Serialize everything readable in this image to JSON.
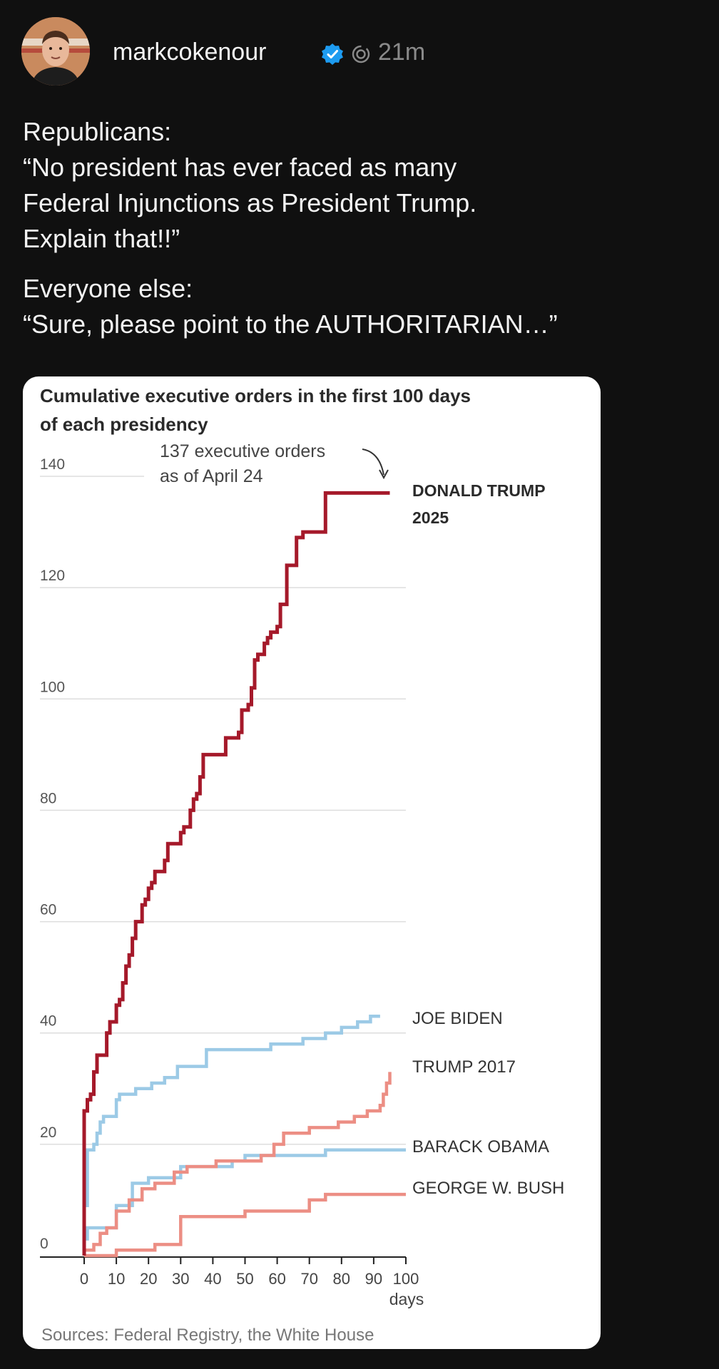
{
  "post": {
    "username": "markcokenour",
    "time": "21m",
    "icons": {
      "verified": "verified-badge-icon",
      "ai": "ai-label-icon"
    },
    "paragraph1": [
      "Republicans:",
      "“No president has ever faced as many",
      "Federal Injunctions as President Trump.",
      "Explain that!!”"
    ],
    "paragraph2": [
      "Everyone else:",
      "“Sure, please point to the AUTHORITARIAN…”"
    ]
  },
  "chart_data": {
    "type": "line",
    "title": "Cumulative executive orders in the first 100 days of each presidency",
    "title_lines": [
      "Cumulative executive orders in the first 100 days",
      "of each presidency"
    ],
    "xlabel": "days",
    "xlim": [
      0,
      100
    ],
    "ylim": [
      0,
      140
    ],
    "x_ticks": [
      0,
      10,
      20,
      30,
      40,
      50,
      60,
      70,
      80,
      90,
      100
    ],
    "y_ticks": [
      0,
      20,
      40,
      60,
      80,
      100,
      120,
      140
    ],
    "grid": true,
    "annotation": {
      "lines": [
        "137 executive orders",
        "as of April 24"
      ],
      "x": 95,
      "y": 137
    },
    "source": "Sources: Federal Registry, the White House",
    "colors": {
      "trump2025": "#a5192a",
      "democrat": "#9ccae6",
      "republican": "#ec8e84"
    },
    "series": [
      {
        "name": "DONALD TRUMP 2025",
        "label_lines": [
          "DONALD TRUMP",
          "2025"
        ],
        "color": "#a5192a",
        "bold": true,
        "points": [
          [
            0,
            0
          ],
          [
            0,
            26
          ],
          [
            1,
            26
          ],
          [
            1,
            28
          ],
          [
            2,
            28
          ],
          [
            2,
            29
          ],
          [
            3,
            29
          ],
          [
            3,
            33
          ],
          [
            4,
            33
          ],
          [
            4,
            36
          ],
          [
            5,
            36
          ],
          [
            5,
            36
          ],
          [
            7,
            36
          ],
          [
            7,
            40
          ],
          [
            8,
            40
          ],
          [
            8,
            42
          ],
          [
            10,
            42
          ],
          [
            10,
            45
          ],
          [
            11,
            45
          ],
          [
            11,
            46
          ],
          [
            12,
            46
          ],
          [
            12,
            49
          ],
          [
            13,
            49
          ],
          [
            13,
            52
          ],
          [
            14,
            52
          ],
          [
            14,
            54
          ],
          [
            15,
            54
          ],
          [
            15,
            57
          ],
          [
            16,
            57
          ],
          [
            16,
            60
          ],
          [
            18,
            60
          ],
          [
            18,
            63
          ],
          [
            19,
            63
          ],
          [
            19,
            64
          ],
          [
            20,
            64
          ],
          [
            20,
            66
          ],
          [
            21,
            66
          ],
          [
            21,
            67
          ],
          [
            22,
            67
          ],
          [
            22,
            69
          ],
          [
            25,
            69
          ],
          [
            25,
            71
          ],
          [
            26,
            71
          ],
          [
            26,
            74
          ],
          [
            30,
            74
          ],
          [
            30,
            76
          ],
          [
            31,
            76
          ],
          [
            31,
            77
          ],
          [
            33,
            77
          ],
          [
            33,
            80
          ],
          [
            34,
            80
          ],
          [
            34,
            82
          ],
          [
            35,
            82
          ],
          [
            35,
            83
          ],
          [
            36,
            83
          ],
          [
            36,
            86
          ],
          [
            37,
            86
          ],
          [
            37,
            90
          ],
          [
            44,
            90
          ],
          [
            44,
            93
          ],
          [
            48,
            93
          ],
          [
            48,
            94
          ],
          [
            49,
            94
          ],
          [
            49,
            98
          ],
          [
            51,
            98
          ],
          [
            51,
            99
          ],
          [
            52,
            99
          ],
          [
            52,
            102
          ],
          [
            53,
            102
          ],
          [
            53,
            107
          ],
          [
            54,
            107
          ],
          [
            54,
            108
          ],
          [
            56,
            108
          ],
          [
            56,
            110
          ],
          [
            57,
            110
          ],
          [
            57,
            111
          ],
          [
            58,
            111
          ],
          [
            58,
            112
          ],
          [
            60,
            112
          ],
          [
            60,
            113
          ],
          [
            61,
            113
          ],
          [
            61,
            117
          ],
          [
            63,
            117
          ],
          [
            63,
            124
          ],
          [
            66,
            124
          ],
          [
            66,
            129
          ],
          [
            68,
            129
          ],
          [
            68,
            130
          ],
          [
            75,
            130
          ],
          [
            75,
            137
          ],
          [
            95,
            137
          ]
        ]
      },
      {
        "name": "JOE BIDEN",
        "label_lines": [
          "JOE BIDEN"
        ],
        "color": "#9ccae6",
        "bold": false,
        "points": [
          [
            0,
            0
          ],
          [
            0,
            9
          ],
          [
            1,
            9
          ],
          [
            1,
            19
          ],
          [
            3,
            19
          ],
          [
            3,
            20
          ],
          [
            4,
            20
          ],
          [
            4,
            22
          ],
          [
            5,
            22
          ],
          [
            5,
            24
          ],
          [
            6,
            24
          ],
          [
            6,
            25
          ],
          [
            10,
            25
          ],
          [
            10,
            28
          ],
          [
            11,
            28
          ],
          [
            11,
            29
          ],
          [
            16,
            29
          ],
          [
            16,
            30
          ],
          [
            21,
            30
          ],
          [
            21,
            31
          ],
          [
            25,
            31
          ],
          [
            25,
            32
          ],
          [
            29,
            32
          ],
          [
            29,
            34
          ],
          [
            38,
            34
          ],
          [
            38,
            37
          ],
          [
            58,
            37
          ],
          [
            58,
            38
          ],
          [
            68,
            38
          ],
          [
            68,
            39
          ],
          [
            75,
            39
          ],
          [
            75,
            40
          ],
          [
            80,
            40
          ],
          [
            80,
            41
          ],
          [
            85,
            41
          ],
          [
            85,
            42
          ],
          [
            89,
            42
          ],
          [
            89,
            43
          ],
          [
            92,
            43
          ]
        ]
      },
      {
        "name": "TRUMP 2017",
        "label_lines": [
          "TRUMP 2017"
        ],
        "color": "#ec8e84",
        "bold": false,
        "points": [
          [
            0,
            0
          ],
          [
            0,
            1
          ],
          [
            3,
            1
          ],
          [
            3,
            2
          ],
          [
            5,
            2
          ],
          [
            5,
            4
          ],
          [
            7,
            4
          ],
          [
            7,
            5
          ],
          [
            10,
            5
          ],
          [
            10,
            8
          ],
          [
            14,
            8
          ],
          [
            14,
            10
          ],
          [
            18,
            10
          ],
          [
            18,
            12
          ],
          [
            22,
            12
          ],
          [
            22,
            13
          ],
          [
            28,
            13
          ],
          [
            28,
            15
          ],
          [
            32,
            15
          ],
          [
            32,
            16
          ],
          [
            41,
            16
          ],
          [
            41,
            17
          ],
          [
            55,
            17
          ],
          [
            55,
            18
          ],
          [
            59,
            18
          ],
          [
            59,
            20
          ],
          [
            62,
            20
          ],
          [
            62,
            22
          ],
          [
            70,
            22
          ],
          [
            70,
            23
          ],
          [
            79,
            23
          ],
          [
            79,
            24
          ],
          [
            84,
            24
          ],
          [
            84,
            25
          ],
          [
            88,
            25
          ],
          [
            88,
            26
          ],
          [
            92,
            26
          ],
          [
            92,
            27
          ],
          [
            93,
            27
          ],
          [
            93,
            29
          ],
          [
            94,
            29
          ],
          [
            94,
            31
          ],
          [
            95,
            31
          ],
          [
            95,
            33
          ]
        ]
      },
      {
        "name": "BARACK OBAMA",
        "label_lines": [
          "BARACK OBAMA"
        ],
        "color": "#9ccae6",
        "bold": false,
        "points": [
          [
            0,
            0
          ],
          [
            0,
            3
          ],
          [
            1,
            3
          ],
          [
            1,
            5
          ],
          [
            10,
            5
          ],
          [
            10,
            9
          ],
          [
            15,
            9
          ],
          [
            15,
            13
          ],
          [
            20,
            13
          ],
          [
            20,
            14
          ],
          [
            30,
            14
          ],
          [
            30,
            16
          ],
          [
            46,
            16
          ],
          [
            46,
            17
          ],
          [
            50,
            17
          ],
          [
            50,
            18
          ],
          [
            75,
            18
          ],
          [
            75,
            19
          ],
          [
            100,
            19
          ]
        ]
      },
      {
        "name": "GEORGE W. BUSH",
        "label_lines": [
          "GEORGE W. BUSH"
        ],
        "color": "#ec8e84",
        "bold": false,
        "points": [
          [
            0,
            0
          ],
          [
            10,
            0
          ],
          [
            10,
            1
          ],
          [
            22,
            1
          ],
          [
            22,
            2
          ],
          [
            30,
            2
          ],
          [
            30,
            7
          ],
          [
            50,
            7
          ],
          [
            50,
            8
          ],
          [
            70,
            8
          ],
          [
            70,
            10
          ],
          [
            75,
            10
          ],
          [
            75,
            11
          ],
          [
            100,
            11
          ]
        ]
      }
    ]
  }
}
